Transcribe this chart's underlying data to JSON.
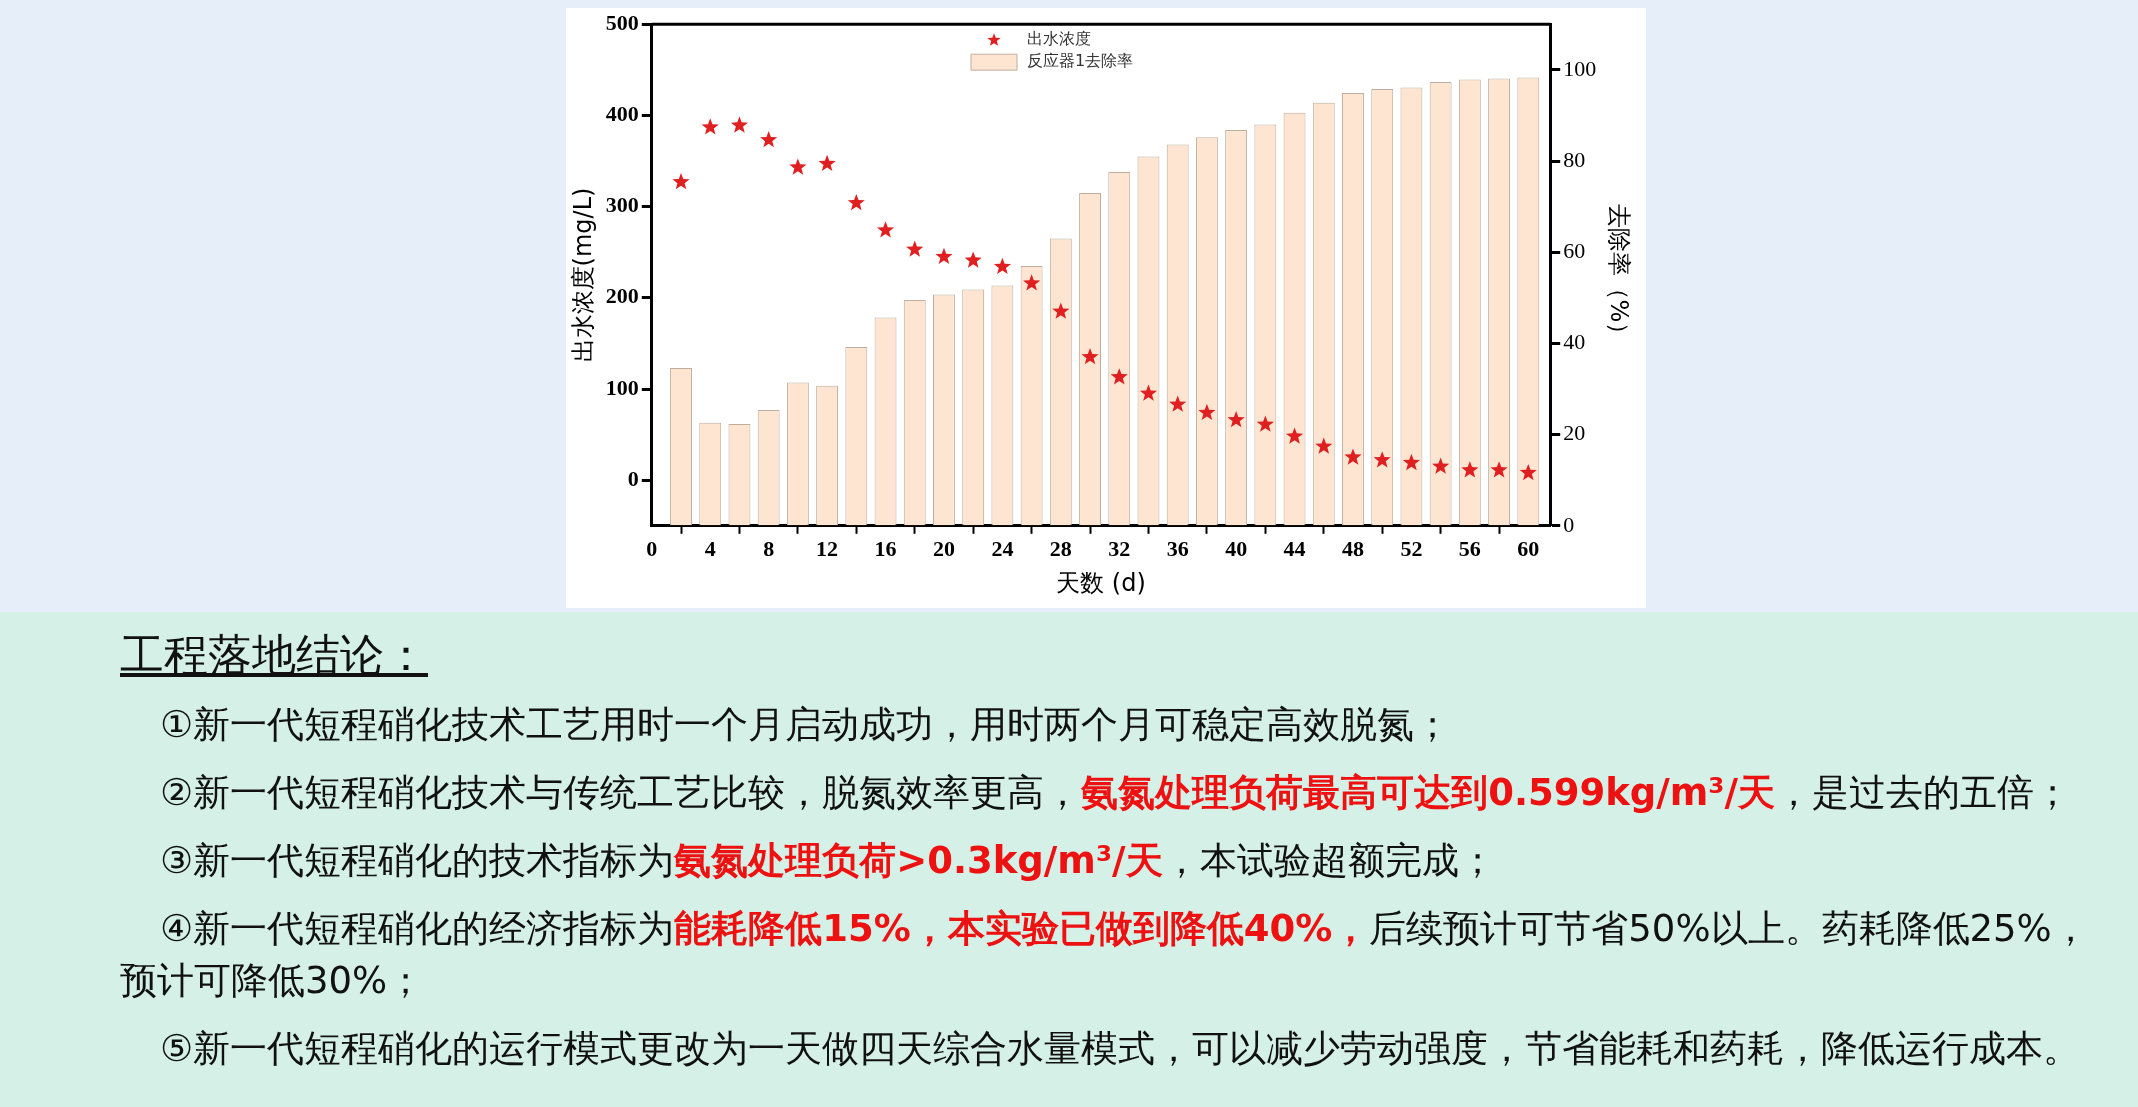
{
  "chart_data": {
    "type": "bar",
    "xlabel": "天数 (d)",
    "ylabel": "出水浓度(mg/L)",
    "y2label": "去除率（%）",
    "x": [
      2,
      4,
      6,
      8,
      10,
      12,
      14,
      16,
      18,
      20,
      22,
      24,
      26,
      28,
      30,
      32,
      34,
      36,
      38,
      40,
      42,
      44,
      46,
      48,
      50,
      52,
      54,
      56,
      58,
      60
    ],
    "series": [
      {
        "name": "出水浓度",
        "type": "scatter",
        "color": "#e02020",
        "marker": "star",
        "values": [
          327,
          387,
          389,
          373,
          343,
          347,
          304,
          274,
          253,
          245,
          241,
          234,
          216,
          185,
          135,
          113,
          95,
          83,
          74,
          66,
          61,
          48,
          37,
          25,
          22,
          19,
          15,
          11,
          11,
          8
        ]
      },
      {
        "name": "反应器1去除率",
        "axis": "y2",
        "color": "#fde5d2",
        "values": [
          34.6,
          22.6,
          22.3,
          25.4,
          31.4,
          30.7,
          39.2,
          45.7,
          49.5,
          50.7,
          51.8,
          52.7,
          57,
          63,
          73,
          77.6,
          81,
          83.6,
          85.2,
          86.8,
          88,
          90.6,
          92.8,
          94.9,
          95.8,
          96.1,
          97.3,
          97.9,
          98.1,
          98.3
        ]
      }
    ],
    "xlim": [
      0,
      61.5
    ],
    "xticks": [
      0,
      4,
      8,
      12,
      16,
      20,
      24,
      28,
      32,
      36,
      40,
      44,
      48,
      52,
      56,
      60
    ],
    "ylim": [
      -50,
      500
    ],
    "yticks": [
      0,
      100,
      200,
      300,
      400,
      500
    ],
    "y2lim": [
      0,
      110
    ],
    "y2ticks": [
      0,
      20,
      40,
      60,
      80,
      100
    ],
    "legend": "top",
    "annotations": [
      "工程落地结论：",
      "①新一代短程硝化技术工艺用时一个月启动成功，用时两个月可稳定高效脱氮；",
      "②新一代短程硝化技术与传统工艺比较，脱氮效率更高，",
      "氨氮处理负荷最高可达到0.599kg/m³/天",
      "，是过去的五倍；",
      "③新一代短程硝化的技术指标为",
      "氨氮处理负荷>0.3kg/m³/天",
      "，本试验超额完成；",
      "④新一代短程硝化的经济指标为",
      "能耗降低15%，本实验已做到降低40%，",
      "后续预计可节省50%以上。药耗降低25%，预计可降低30%；",
      "⑤新一代短程硝化的运行模式更改为一天做四天综合水量模式，可以减少劳动强度，节省能耗和药耗，降低运行成本。"
    ]
  }
}
